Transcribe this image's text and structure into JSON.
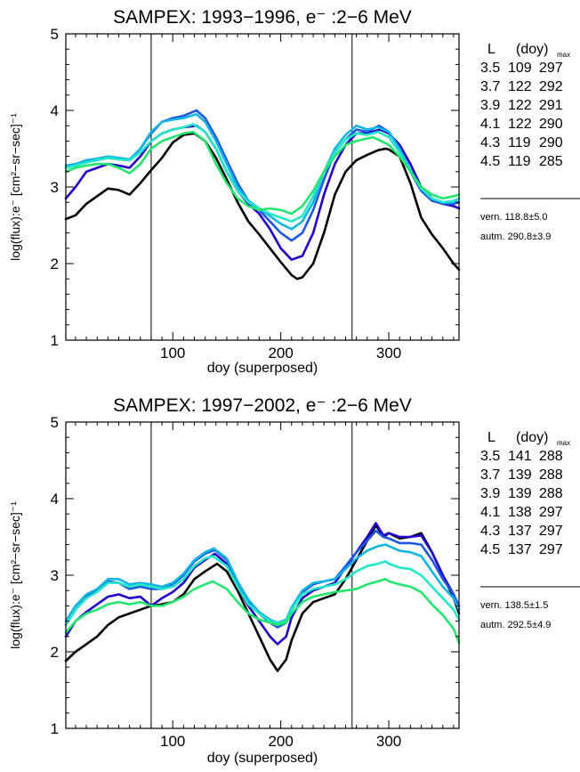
{
  "chart_data": [
    {
      "type": "line",
      "title": "SAMPEX: 1993−1996, e⁻ :2−6 MeV",
      "xlabel": "doy (superposed)",
      "ylabel": "log(flux):e⁻ [cm²−sr−sec]⁻¹",
      "xlim": [
        1,
        365
      ],
      "ylim": [
        1,
        5
      ],
      "xticks": [
        100,
        200,
        300
      ],
      "yticks": [
        1,
        2,
        3,
        4,
        5
      ],
      "vlines": [
        80,
        266
      ],
      "legend_header": {
        "l": "L",
        "doy": "(doy)",
        "sub": "max"
      },
      "series": [
        {
          "name": "3.5",
          "vern": "109",
          "autm": "297",
          "color": "#000000",
          "x": [
            1,
            10,
            20,
            30,
            40,
            50,
            60,
            70,
            80,
            90,
            100,
            110,
            120,
            130,
            140,
            150,
            160,
            170,
            180,
            190,
            200,
            210,
            215,
            220,
            230,
            240,
            250,
            260,
            270,
            280,
            290,
            297,
            300,
            310,
            320,
            330,
            340,
            350,
            360,
            365
          ],
          "y": [
            2.58,
            2.63,
            2.78,
            2.88,
            2.98,
            2.96,
            2.9,
            3.05,
            3.22,
            3.38,
            3.58,
            3.68,
            3.7,
            3.6,
            3.38,
            3.1,
            2.8,
            2.55,
            2.38,
            2.2,
            2.02,
            1.85,
            1.8,
            1.82,
            2.0,
            2.4,
            2.9,
            3.2,
            3.35,
            3.42,
            3.48,
            3.5,
            3.49,
            3.4,
            3.05,
            2.6,
            2.38,
            2.2,
            2.0,
            1.92
          ]
        },
        {
          "name": "3.7",
          "vern": "122",
          "autm": "292",
          "color": "#2200cc",
          "x": [
            1,
            10,
            20,
            30,
            40,
            50,
            60,
            70,
            80,
            90,
            100,
            110,
            122,
            130,
            140,
            150,
            160,
            170,
            180,
            190,
            200,
            210,
            220,
            230,
            240,
            250,
            260,
            270,
            280,
            292,
            300,
            310,
            320,
            330,
            340,
            350,
            360,
            365
          ],
          "y": [
            2.85,
            3.0,
            3.2,
            3.25,
            3.3,
            3.28,
            3.25,
            3.4,
            3.6,
            3.7,
            3.75,
            3.78,
            3.8,
            3.72,
            3.5,
            3.2,
            2.95,
            2.78,
            2.65,
            2.45,
            2.2,
            2.05,
            2.1,
            2.4,
            2.9,
            3.3,
            3.55,
            3.7,
            3.7,
            3.75,
            3.7,
            3.55,
            3.3,
            3.0,
            2.85,
            2.78,
            2.75,
            2.72
          ]
        },
        {
          "name": "3.9",
          "vern": "122",
          "autm": "291",
          "color": "#1d56e0",
          "x": [
            1,
            10,
            20,
            30,
            40,
            50,
            60,
            70,
            80,
            90,
            100,
            110,
            122,
            130,
            140,
            150,
            160,
            170,
            180,
            190,
            200,
            210,
            220,
            230,
            240,
            250,
            260,
            270,
            280,
            291,
            300,
            310,
            320,
            330,
            340,
            350,
            360,
            365
          ],
          "y": [
            3.25,
            3.28,
            3.33,
            3.35,
            3.38,
            3.36,
            3.35,
            3.5,
            3.7,
            3.85,
            3.9,
            3.93,
            4.0,
            3.9,
            3.65,
            3.35,
            3.05,
            2.82,
            2.7,
            2.55,
            2.4,
            2.3,
            2.4,
            2.7,
            3.1,
            3.45,
            3.62,
            3.75,
            3.72,
            3.8,
            3.72,
            3.5,
            3.2,
            2.95,
            2.82,
            2.78,
            2.78,
            2.8
          ]
        },
        {
          "name": "4.1",
          "vern": "122",
          "autm": "290",
          "color": "#12b4e6",
          "x": [
            1,
            10,
            20,
            30,
            40,
            50,
            60,
            70,
            80,
            90,
            100,
            110,
            122,
            130,
            140,
            150,
            160,
            170,
            180,
            190,
            200,
            210,
            220,
            230,
            240,
            250,
            260,
            270,
            280,
            290,
            300,
            310,
            320,
            330,
            340,
            350,
            360,
            365
          ],
          "y": [
            3.28,
            3.3,
            3.35,
            3.37,
            3.4,
            3.38,
            3.36,
            3.5,
            3.72,
            3.85,
            3.88,
            3.9,
            3.95,
            3.85,
            3.6,
            3.3,
            3.0,
            2.82,
            2.72,
            2.62,
            2.52,
            2.45,
            2.55,
            2.8,
            3.2,
            3.5,
            3.68,
            3.8,
            3.75,
            3.78,
            3.72,
            3.5,
            3.22,
            2.98,
            2.85,
            2.8,
            2.8,
            2.85
          ]
        },
        {
          "name": "4.3",
          "vern": "119",
          "autm": "290",
          "color": "#22e8c8",
          "x": [
            1,
            10,
            20,
            30,
            40,
            50,
            60,
            70,
            80,
            90,
            100,
            110,
            119,
            130,
            140,
            150,
            160,
            170,
            180,
            190,
            200,
            210,
            220,
            230,
            240,
            250,
            260,
            270,
            280,
            290,
            300,
            310,
            320,
            330,
            340,
            350,
            360,
            365
          ],
          "y": [
            3.25,
            3.28,
            3.32,
            3.35,
            3.38,
            3.36,
            3.35,
            3.45,
            3.6,
            3.7,
            3.75,
            3.78,
            3.82,
            3.72,
            3.5,
            3.2,
            2.95,
            2.8,
            2.72,
            2.65,
            2.6,
            2.55,
            2.62,
            2.88,
            3.2,
            3.45,
            3.62,
            3.7,
            3.68,
            3.72,
            3.65,
            3.45,
            3.2,
            2.98,
            2.85,
            2.8,
            2.82,
            2.85
          ]
        },
        {
          "name": "4.5",
          "vern": "119",
          "autm": "285",
          "color": "#22e66e",
          "x": [
            1,
            10,
            20,
            30,
            40,
            50,
            60,
            70,
            80,
            90,
            100,
            110,
            119,
            130,
            140,
            150,
            160,
            170,
            180,
            190,
            200,
            210,
            220,
            230,
            240,
            250,
            260,
            270,
            285,
            290,
            300,
            310,
            320,
            330,
            340,
            350,
            360,
            365
          ],
          "y": [
            3.2,
            3.25,
            3.28,
            3.3,
            3.3,
            3.25,
            3.18,
            3.3,
            3.5,
            3.6,
            3.65,
            3.7,
            3.72,
            3.6,
            3.3,
            3.05,
            2.85,
            2.75,
            2.7,
            2.72,
            2.7,
            2.65,
            2.75,
            2.95,
            3.2,
            3.4,
            3.55,
            3.6,
            3.65,
            3.62,
            3.55,
            3.4,
            3.2,
            3.0,
            2.9,
            2.85,
            2.88,
            2.9
          ]
        }
      ],
      "summary": {
        "vern": "vern. 118.8±5.0",
        "autm": "autm. 290.8±3.9"
      }
    },
    {
      "type": "line",
      "title": "SAMPEX: 1997−2002, e⁻ :2−6 MeV",
      "xlabel": "doy (superposed)",
      "ylabel": "log(flux):e⁻ [cm²−sr−sec]⁻¹",
      "xlim": [
        1,
        365
      ],
      "ylim": [
        1,
        5
      ],
      "xticks": [
        100,
        200,
        300
      ],
      "yticks": [
        1,
        2,
        3,
        4,
        5
      ],
      "vlines": [
        80,
        266
      ],
      "legend_header": {
        "l": "L",
        "doy": "(doy)",
        "sub": "max"
      },
      "series": [
        {
          "name": "3.5",
          "vern": "141",
          "autm": "288",
          "color": "#000000",
          "x": [
            1,
            10,
            20,
            30,
            40,
            50,
            60,
            70,
            80,
            90,
            100,
            110,
            120,
            130,
            141,
            150,
            160,
            170,
            180,
            190,
            197,
            205,
            210,
            220,
            230,
            240,
            250,
            260,
            270,
            280,
            288,
            295,
            300,
            310,
            320,
            330,
            340,
            350,
            360,
            365
          ],
          "y": [
            1.88,
            2.0,
            2.1,
            2.2,
            2.35,
            2.45,
            2.5,
            2.55,
            2.6,
            2.62,
            2.65,
            2.75,
            2.95,
            3.05,
            3.15,
            3.05,
            2.8,
            2.5,
            2.2,
            1.9,
            1.75,
            1.9,
            2.15,
            2.5,
            2.65,
            2.7,
            2.75,
            2.95,
            3.2,
            3.45,
            3.65,
            3.5,
            3.55,
            3.48,
            3.5,
            3.55,
            3.3,
            3.0,
            2.7,
            2.5
          ]
        },
        {
          "name": "3.7",
          "vern": "139",
          "autm": "288",
          "color": "#2200cc",
          "x": [
            1,
            10,
            20,
            30,
            40,
            50,
            60,
            70,
            80,
            90,
            100,
            110,
            120,
            130,
            139,
            150,
            160,
            170,
            180,
            190,
            197,
            205,
            210,
            220,
            230,
            240,
            250,
            260,
            270,
            280,
            288,
            295,
            300,
            310,
            320,
            330,
            340,
            350,
            360,
            365
          ],
          "y": [
            2.2,
            2.4,
            2.52,
            2.62,
            2.72,
            2.75,
            2.7,
            2.72,
            2.6,
            2.7,
            2.78,
            2.9,
            3.1,
            3.2,
            3.28,
            3.15,
            2.85,
            2.6,
            2.4,
            2.2,
            2.1,
            2.2,
            2.45,
            2.7,
            2.8,
            2.85,
            2.9,
            3.1,
            3.3,
            3.5,
            3.68,
            3.52,
            3.55,
            3.5,
            3.5,
            3.52,
            3.3,
            3.0,
            2.75,
            2.55
          ]
        },
        {
          "name": "3.9",
          "vern": "139",
          "autm": "288",
          "color": "#1d56e0",
          "x": [
            1,
            10,
            20,
            30,
            40,
            50,
            60,
            70,
            80,
            90,
            100,
            110,
            120,
            130,
            139,
            150,
            160,
            170,
            180,
            190,
            197,
            205,
            210,
            220,
            230,
            240,
            250,
            260,
            270,
            280,
            288,
            295,
            300,
            310,
            320,
            330,
            340,
            350,
            360,
            365
          ],
          "y": [
            2.35,
            2.55,
            2.72,
            2.8,
            2.92,
            2.9,
            2.82,
            2.85,
            2.82,
            2.82,
            2.88,
            3.0,
            3.18,
            3.28,
            3.33,
            3.2,
            2.9,
            2.65,
            2.5,
            2.38,
            2.32,
            2.38,
            2.55,
            2.78,
            2.88,
            2.92,
            2.95,
            3.12,
            3.3,
            3.45,
            3.58,
            3.5,
            3.48,
            3.42,
            3.42,
            3.4,
            3.2,
            2.95,
            2.75,
            2.6
          ]
        },
        {
          "name": "4.1",
          "vern": "138",
          "autm": "297",
          "color": "#12b4e6",
          "x": [
            1,
            10,
            20,
            30,
            40,
            50,
            60,
            70,
            80,
            90,
            100,
            110,
            120,
            130,
            138,
            150,
            160,
            170,
            180,
            190,
            197,
            205,
            210,
            220,
            230,
            240,
            250,
            260,
            270,
            280,
            290,
            297,
            300,
            310,
            320,
            330,
            340,
            350,
            360,
            365
          ],
          "y": [
            2.4,
            2.6,
            2.75,
            2.82,
            2.95,
            2.95,
            2.88,
            2.9,
            2.88,
            2.85,
            2.9,
            3.02,
            3.2,
            3.3,
            3.35,
            3.22,
            2.92,
            2.68,
            2.52,
            2.42,
            2.38,
            2.42,
            2.58,
            2.8,
            2.9,
            2.92,
            2.95,
            3.08,
            3.22,
            3.32,
            3.38,
            3.4,
            3.38,
            3.32,
            3.3,
            3.25,
            3.05,
            2.85,
            2.7,
            2.55
          ]
        },
        {
          "name": "4.3",
          "vern": "137",
          "autm": "297",
          "color": "#22e8c8",
          "x": [
            1,
            10,
            20,
            30,
            40,
            50,
            60,
            70,
            80,
            90,
            100,
            110,
            120,
            130,
            137,
            150,
            160,
            170,
            180,
            190,
            197,
            205,
            210,
            220,
            230,
            240,
            250,
            260,
            270,
            280,
            290,
            297,
            300,
            310,
            320,
            330,
            340,
            350,
            360,
            365
          ],
          "y": [
            2.35,
            2.55,
            2.7,
            2.78,
            2.9,
            2.9,
            2.85,
            2.88,
            2.85,
            2.82,
            2.85,
            2.95,
            3.12,
            3.22,
            3.25,
            3.12,
            2.85,
            2.62,
            2.5,
            2.4,
            2.38,
            2.4,
            2.55,
            2.75,
            2.82,
            2.85,
            2.88,
            2.95,
            3.05,
            3.12,
            3.15,
            3.18,
            3.15,
            3.1,
            3.08,
            3.0,
            2.85,
            2.7,
            2.55,
            2.42
          ]
        },
        {
          "name": "4.5",
          "vern": "137",
          "autm": "297",
          "color": "#22e66e",
          "x": [
            1,
            10,
            20,
            30,
            40,
            50,
            60,
            70,
            80,
            90,
            100,
            110,
            120,
            130,
            137,
            150,
            160,
            170,
            180,
            190,
            197,
            205,
            210,
            220,
            230,
            240,
            250,
            260,
            270,
            280,
            290,
            297,
            300,
            310,
            320,
            330,
            340,
            350,
            360,
            365
          ],
          "y": [
            2.25,
            2.4,
            2.5,
            2.55,
            2.62,
            2.65,
            2.62,
            2.65,
            2.6,
            2.6,
            2.65,
            2.72,
            2.82,
            2.88,
            2.92,
            2.82,
            2.65,
            2.5,
            2.42,
            2.38,
            2.35,
            2.38,
            2.5,
            2.65,
            2.72,
            2.75,
            2.78,
            2.8,
            2.82,
            2.88,
            2.92,
            2.95,
            2.92,
            2.88,
            2.85,
            2.78,
            2.62,
            2.48,
            2.3,
            2.12
          ]
        }
      ],
      "summary": {
        "vern": "vern. 138.5±1.5",
        "autm": "autm. 292.5±4.9"
      }
    }
  ]
}
